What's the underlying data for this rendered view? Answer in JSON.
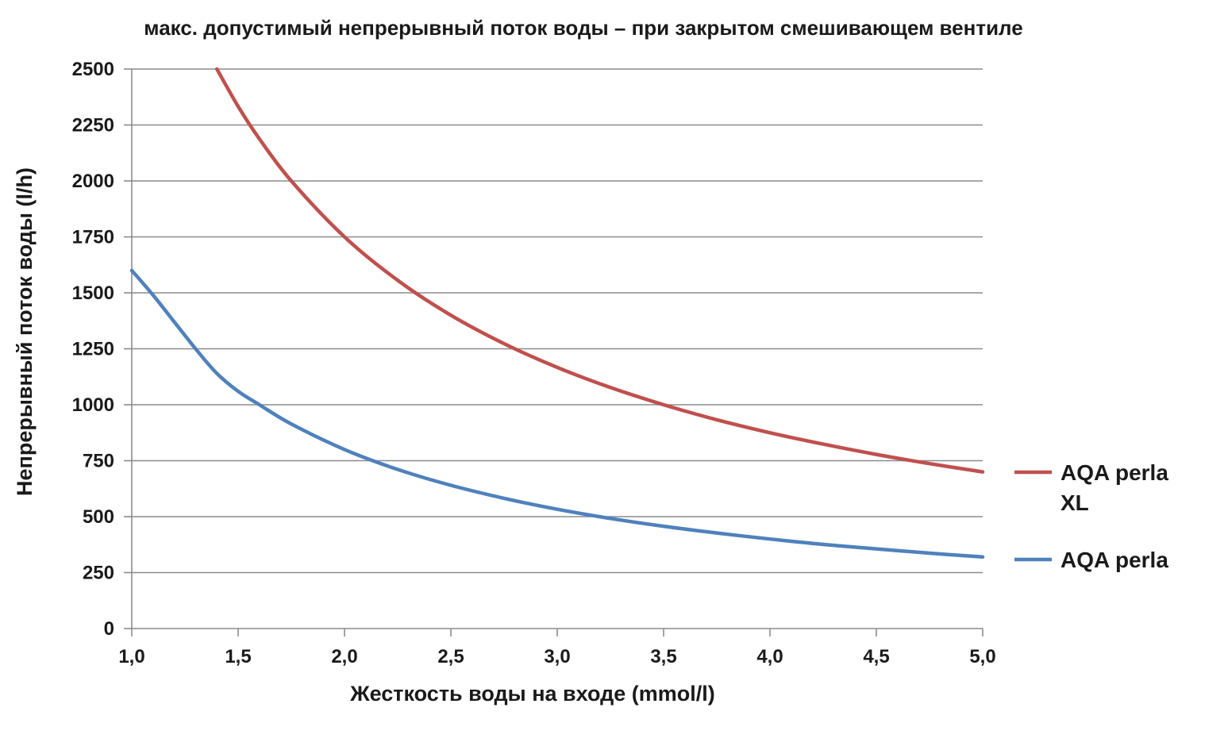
{
  "chart_data": {
    "type": "line",
    "title": "макс. допустимый непрерывный поток воды – при закрытом смешивающем вентиле",
    "xlabel": "Жесткость воды на входе (mmol/l)",
    "ylabel": "Непрерывный поток воды (l/h)",
    "xlim": [
      1.0,
      5.0
    ],
    "ylim": [
      0,
      2500
    ],
    "x_ticks": [
      "1,0",
      "1,5",
      "2,0",
      "2,5",
      "3,0",
      "3,5",
      "4,0",
      "4,5",
      "5,0"
    ],
    "y_ticks": [
      "0",
      "250",
      "500",
      "750",
      "1000",
      "1250",
      "1500",
      "1750",
      "2000",
      "2250",
      "2500"
    ],
    "grid": "horizontal",
    "legend_position": "right",
    "series": [
      {
        "name": "AQA perla XL",
        "legend_lines": [
          "AQA perla",
          "XL"
        ],
        "color": "#c0504d",
        "x": [
          1.4,
          1.5,
          1.6,
          1.75,
          2.0,
          2.25,
          2.5,
          2.75,
          3.0,
          3.25,
          3.5,
          3.75,
          4.0,
          4.25,
          4.5,
          4.75,
          5.0
        ],
        "y": [
          2500,
          2333,
          2188,
          2000,
          1750,
          1556,
          1400,
          1273,
          1167,
          1077,
          1000,
          933,
          875,
          824,
          778,
          737,
          700
        ]
      },
      {
        "name": "AQA perla",
        "legend_lines": [
          "AQA perla"
        ],
        "color": "#4f81bd",
        "x": [
          1.0,
          1.1,
          1.2,
          1.3,
          1.4,
          1.5,
          1.6,
          1.75,
          2.0,
          2.25,
          2.5,
          2.75,
          3.0,
          3.25,
          3.5,
          3.75,
          4.0,
          4.25,
          4.5,
          4.75,
          5.0
        ],
        "y": [
          1600,
          1490,
          1370,
          1250,
          1140,
          1060,
          1000,
          914,
          800,
          711,
          640,
          582,
          533,
          492,
          457,
          427,
          400,
          376,
          356,
          337,
          320
        ]
      }
    ]
  }
}
